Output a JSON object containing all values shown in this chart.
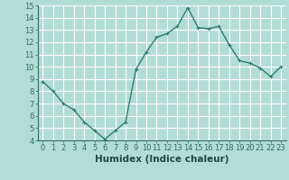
{
  "x": [
    0,
    1,
    2,
    3,
    4,
    5,
    6,
    7,
    8,
    9,
    10,
    11,
    12,
    13,
    14,
    15,
    16,
    17,
    18,
    19,
    20,
    21,
    22,
    23
  ],
  "y": [
    8.8,
    8.0,
    7.0,
    6.5,
    5.5,
    4.8,
    4.1,
    4.8,
    5.5,
    9.8,
    11.2,
    12.4,
    12.7,
    13.3,
    14.8,
    13.2,
    13.1,
    13.3,
    11.8,
    10.5,
    10.3,
    9.9,
    9.2,
    10.0
  ],
  "line_color": "#2e7d6e",
  "marker": "+",
  "marker_size": 3,
  "bg_color": "#b2ddd4",
  "grid_color": "#ffffff",
  "xlabel": "Humidex (Indice chaleur)",
  "ylim": [
    4,
    15
  ],
  "xlim": [
    -0.5,
    23.5
  ],
  "yticks": [
    4,
    5,
    6,
    7,
    8,
    9,
    10,
    11,
    12,
    13,
    14,
    15
  ],
  "xticks": [
    0,
    1,
    2,
    3,
    4,
    5,
    6,
    7,
    8,
    9,
    10,
    11,
    12,
    13,
    14,
    15,
    16,
    17,
    18,
    19,
    20,
    21,
    22,
    23
  ],
  "tick_color": "#2e6e60",
  "label_color": "#1a4a40",
  "font_size": 6,
  "xlabel_fontsize": 7.5,
  "line_width": 1.0,
  "marker_edge_width": 0.8
}
